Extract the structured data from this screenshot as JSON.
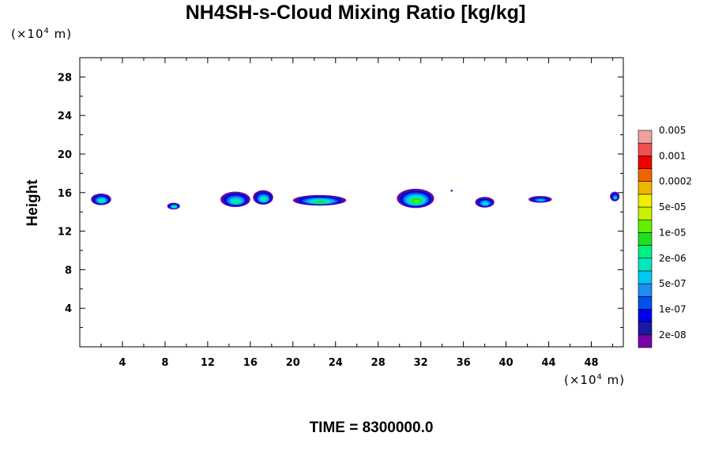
{
  "chart_data": {
    "type": "heatmap",
    "title": "NH4SH-s-Cloud Mixing Ratio [kg/kg]",
    "ylabel": "Height",
    "y_unit": {
      "prefix": "(×10",
      "exp": "4",
      "suffix": " m)"
    },
    "x_unit": {
      "prefix": "(×10",
      "exp": "4",
      "suffix": " m)"
    },
    "xlim": [
      0,
      51
    ],
    "ylim": [
      0,
      30
    ],
    "x_ticks": [
      4,
      8,
      12,
      16,
      20,
      24,
      28,
      32,
      36,
      40,
      44,
      48
    ],
    "y_ticks": [
      4,
      8,
      12,
      16,
      20,
      24,
      28
    ],
    "footer": "TIME = 8300000.0",
    "colorbar": {
      "colors": [
        "#7a00aa",
        "#1a1aa0",
        "#0000ee",
        "#0050f0",
        "#1e8cf0",
        "#00c8f0",
        "#00e8c0",
        "#00f080",
        "#1ee01e",
        "#60f000",
        "#c8f000",
        "#f0f000",
        "#f0b400",
        "#f06400",
        "#f00000",
        "#f05050",
        "#f0a0a0"
      ],
      "labels": [
        "2e-08",
        "1e-07",
        "5e-07",
        "2e-06",
        "1e-05",
        "5e-05",
        "0.0002",
        "0.001",
        "0.005"
      ]
    },
    "cloud_cells": [
      {
        "x": 2.0,
        "y": 15.3,
        "w": 1.9,
        "h": 1.2,
        "max_level": 7
      },
      {
        "x": 8.8,
        "y": 14.6,
        "w": 1.2,
        "h": 0.7,
        "max_level": 7
      },
      {
        "x": 14.6,
        "y": 15.3,
        "w": 2.8,
        "h": 1.6,
        "max_level": 7
      },
      {
        "x": 17.2,
        "y": 15.5,
        "w": 1.9,
        "h": 1.5,
        "max_level": 7
      },
      {
        "x": 22.5,
        "y": 15.2,
        "w": 5.0,
        "h": 1.1,
        "max_level": 8
      },
      {
        "x": 31.5,
        "y": 15.4,
        "w": 3.5,
        "h": 2.0,
        "max_level": 9
      },
      {
        "x": 34.9,
        "y": 16.2,
        "w": 0.2,
        "h": 0.2,
        "max_level": 0
      },
      {
        "x": 38.0,
        "y": 15.0,
        "w": 1.8,
        "h": 1.1,
        "max_level": 6
      },
      {
        "x": 43.2,
        "y": 15.3,
        "w": 2.2,
        "h": 0.7,
        "max_level": 5
      },
      {
        "x": 50.2,
        "y": 15.6,
        "w": 0.9,
        "h": 1.0,
        "max_level": 5
      }
    ]
  }
}
